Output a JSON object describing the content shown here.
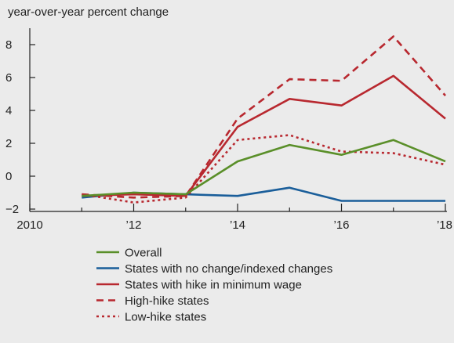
{
  "chart_data": {
    "type": "line",
    "title": "",
    "ylabel": "year-over-year percent change",
    "xlabel": "",
    "x": [
      2011,
      2012,
      2013,
      2014,
      2015,
      2016,
      2017,
      2018
    ],
    "xlim": [
      2010,
      2018
    ],
    "ylim": [
      -2,
      9
    ],
    "x_ticks": [
      2010,
      2012,
      2014,
      2016,
      2018
    ],
    "x_tick_labels": [
      "2010",
      "’12",
      "’14",
      "’16",
      "’18"
    ],
    "y_ticks": [
      -2,
      0,
      2,
      4,
      6,
      8
    ],
    "y_tick_labels": [
      "−2",
      "0",
      "2",
      "4",
      "6",
      "8"
    ],
    "grid": false,
    "legend_position": "bottom",
    "series": [
      {
        "name": "Overall",
        "color": "#5a8f29",
        "dash": "solid",
        "values": [
          -1.2,
          -1.0,
          -1.1,
          0.9,
          1.9,
          1.3,
          2.2,
          0.9
        ]
      },
      {
        "name": "States with no change/indexed changes",
        "color": "#1a5e9a",
        "dash": "solid",
        "values": [
          -1.3,
          -1.0,
          -1.1,
          -1.2,
          -0.7,
          -1.5,
          -1.5,
          -1.5
        ]
      },
      {
        "name": "States with hike in minimum wage",
        "color": "#b8282f",
        "dash": "solid",
        "values": [
          -1.2,
          -1.1,
          -1.2,
          3.0,
          4.7,
          4.3,
          6.1,
          3.5
        ]
      },
      {
        "name": "High-hike states",
        "color": "#b8282f",
        "dash": "dashed",
        "values": [
          -1.1,
          -1.3,
          -1.2,
          3.5,
          5.9,
          5.8,
          8.5,
          4.9
        ]
      },
      {
        "name": "Low-hike states",
        "color": "#b8282f",
        "dash": "dotted",
        "values": [
          -1.1,
          -1.6,
          -1.3,
          2.2,
          2.5,
          1.5,
          1.4,
          0.7
        ]
      }
    ]
  }
}
